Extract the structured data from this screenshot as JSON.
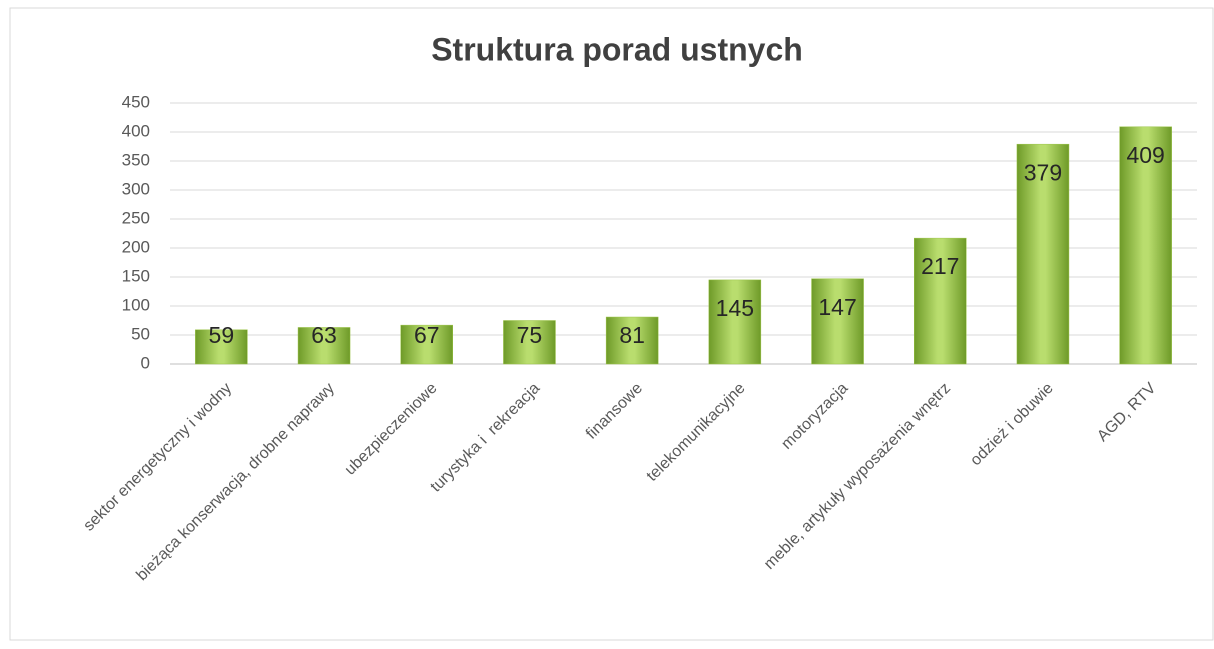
{
  "chart_data": {
    "type": "bar",
    "title": "Struktura porad ustnych",
    "categories": [
      "sektor energetyczny i wodny",
      "bieżąca konserwacja, drobne naprawy",
      "ubezpieczeniowe",
      "turystyka i  rekreacja",
      "finansowe",
      "telekomunikacyjne",
      "motoryzacja",
      "meble, artykuły wyposażenia wnętrz",
      "odzież i obuwie",
      "AGD, RTV"
    ],
    "values": [
      59,
      63,
      67,
      75,
      81,
      145,
      147,
      217,
      379,
      409
    ],
    "color": "#9bc447",
    "ylim": [
      0,
      450
    ],
    "yticks": [
      0,
      50,
      100,
      150,
      200,
      250,
      300,
      350,
      400,
      450
    ],
    "grid": true
  }
}
